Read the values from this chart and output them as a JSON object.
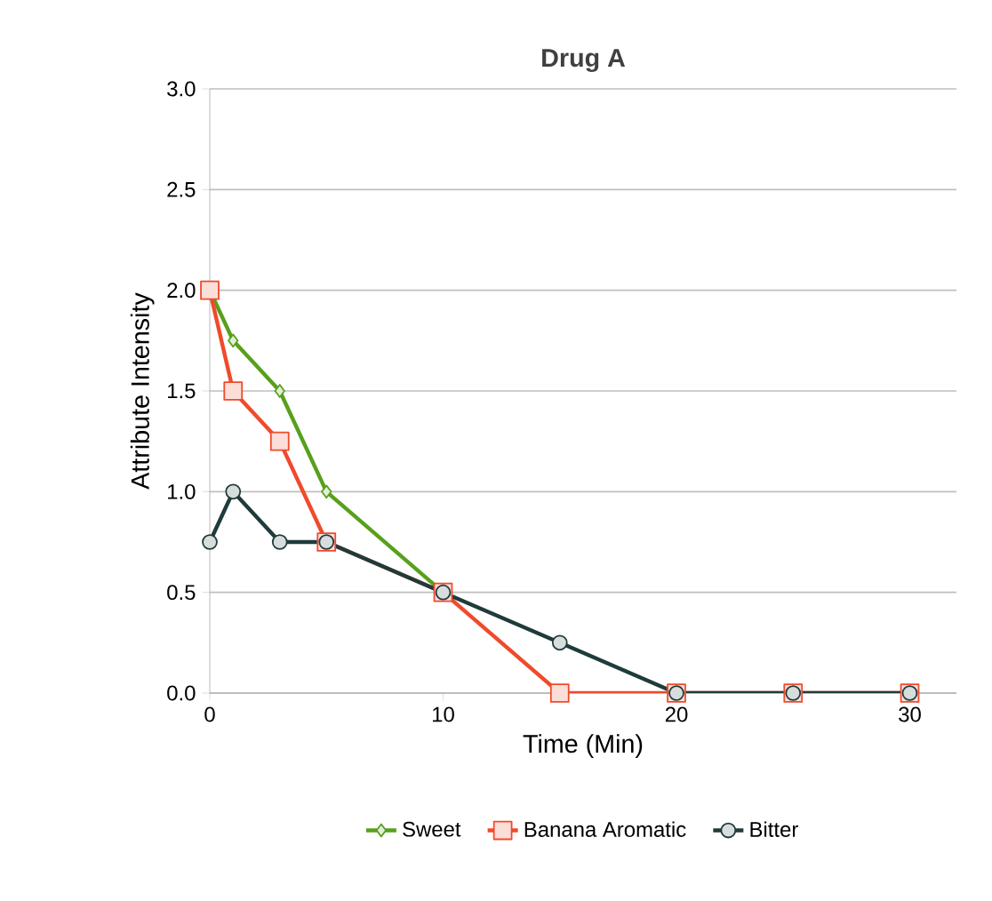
{
  "chart_data": {
    "type": "line",
    "title": "Drug A",
    "xlabel": "Time (Min)",
    "ylabel": "Attribute Intensity",
    "xlim": [
      0,
      32
    ],
    "xticks": [
      0,
      10,
      20,
      30
    ],
    "ylim": [
      0,
      3
    ],
    "yticks": [
      {
        "value": 0,
        "label": "0.0"
      },
      {
        "value": 0.5,
        "label": "0.5"
      },
      {
        "value": 1,
        "label": "1.0"
      },
      {
        "value": 1.5,
        "label": "1.5"
      },
      {
        "value": 2,
        "label": "2.0"
      },
      {
        "value": 2.5,
        "label": "2.5"
      },
      {
        "value": 3,
        "label": "3.0"
      }
    ],
    "grid": "y",
    "legend": "bottom",
    "series": [
      {
        "name": "Sweet",
        "color": "#58a01c",
        "marker": "diamond",
        "x": [
          0,
          1,
          3,
          5,
          10
        ],
        "values": [
          2,
          1.75,
          1.5,
          1,
          0.5
        ]
      },
      {
        "name": "Banana Aromatic",
        "color": "#f04a2c",
        "marker": "square",
        "x": [
          0,
          1,
          3,
          5,
          10,
          15,
          20,
          25,
          30
        ],
        "values": [
          2,
          1.5,
          1.25,
          0.75,
          0.5,
          0,
          0,
          0,
          0
        ]
      },
      {
        "name": "Bitter",
        "color": "#1f3b3b",
        "marker": "circle",
        "x": [
          0,
          1,
          3,
          5,
          10,
          15,
          20,
          25,
          30
        ],
        "values": [
          0.75,
          1,
          0.75,
          0.75,
          0.5,
          0.25,
          0,
          0,
          0
        ]
      }
    ]
  }
}
